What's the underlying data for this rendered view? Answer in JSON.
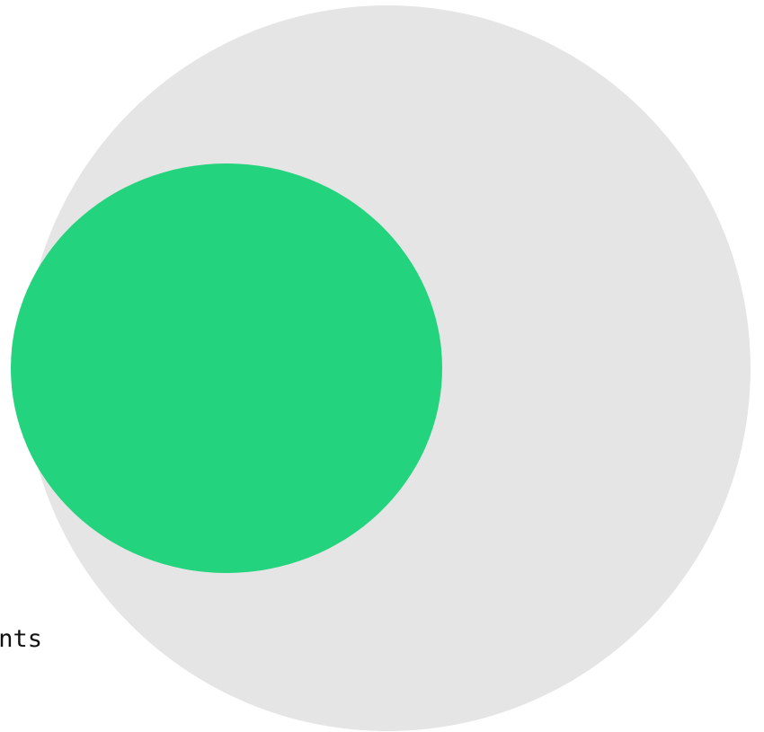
{
  "diagram": {
    "type": "nested-circles",
    "outer_circle": {
      "fill": "#e5e5e5",
      "label": "ants"
    },
    "inner_circle": {
      "fill": "#24d37d"
    }
  }
}
